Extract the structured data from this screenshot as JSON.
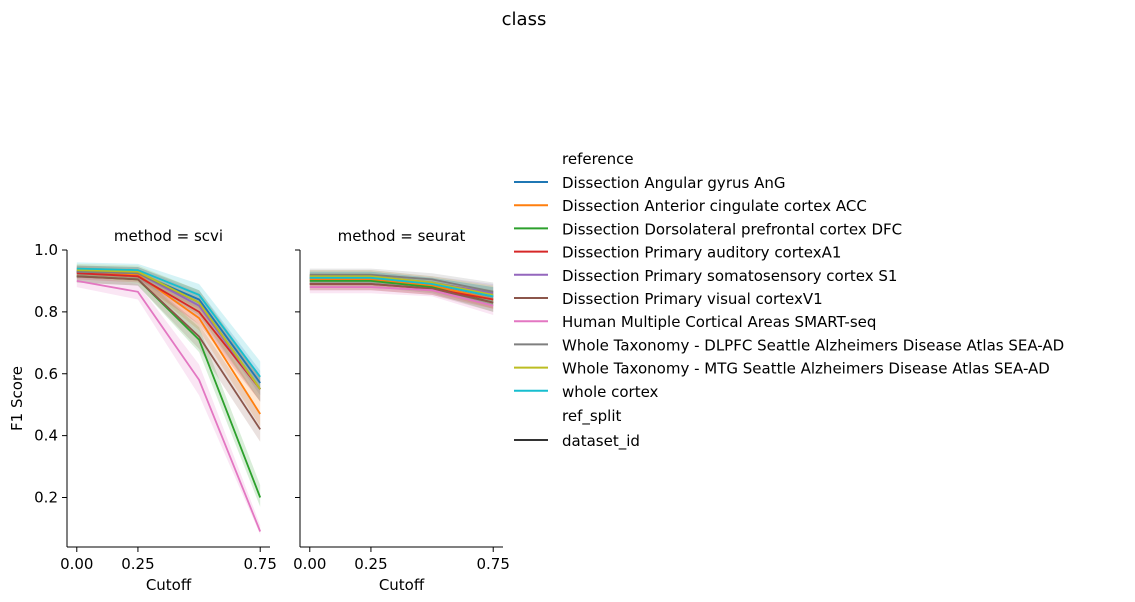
{
  "figure": {
    "suptitle": "class"
  },
  "legend": {
    "hue_title": "reference",
    "style_title": "ref_split",
    "style_entries": [
      {
        "label": "dataset_id",
        "color": "#333333"
      }
    ]
  },
  "chart_data": [
    {
      "type": "line",
      "title": "method = scvi",
      "xlabel": "Cutoff",
      "ylabel": "F1 Score",
      "xlim": [
        -0.04,
        0.79
      ],
      "ylim": [
        0.04,
        1.0
      ],
      "xticks": [
        0.0,
        0.25,
        0.75
      ],
      "xtick_labels": [
        "0.00",
        "0.25",
        "0.75"
      ],
      "yticks": [
        0.2,
        0.4,
        0.6,
        0.8,
        1.0
      ],
      "ytick_labels": [
        "0.2",
        "0.4",
        "0.6",
        "0.8",
        "1.0"
      ],
      "grid": false,
      "legend": "right",
      "x": [
        0.0,
        0.25,
        0.5,
        0.75
      ],
      "series": [
        {
          "name": "Dissection Angular gyrus AnG",
          "color": "#1f77b4",
          "values": [
            0.93,
            0.925,
            0.84,
            0.57
          ],
          "ci_low": [
            0.91,
            0.905,
            0.81,
            0.53
          ],
          "ci_high": [
            0.95,
            0.945,
            0.87,
            0.61
          ]
        },
        {
          "name": "Dissection Anterior cingulate cortex ACC",
          "color": "#ff7f0e",
          "values": [
            0.93,
            0.92,
            0.78,
            0.47
          ],
          "ci_low": [
            0.91,
            0.9,
            0.74,
            0.43
          ],
          "ci_high": [
            0.95,
            0.94,
            0.82,
            0.51
          ]
        },
        {
          "name": "Dissection Dorsolateral prefrontal cortex DFC",
          "color": "#2ca02c",
          "values": [
            0.915,
            0.905,
            0.71,
            0.2
          ],
          "ci_low": [
            0.895,
            0.885,
            0.67,
            0.17
          ],
          "ci_high": [
            0.935,
            0.925,
            0.75,
            0.24
          ]
        },
        {
          "name": "Dissection Primary auditory cortexA1",
          "color": "#d62728",
          "values": [
            0.925,
            0.915,
            0.8,
            0.55
          ],
          "ci_low": [
            0.905,
            0.895,
            0.76,
            0.51
          ],
          "ci_high": [
            0.945,
            0.935,
            0.84,
            0.59
          ]
        },
        {
          "name": "Dissection Primary somatosensory cortex S1",
          "color": "#9467bd",
          "values": [
            0.93,
            0.925,
            0.82,
            0.55
          ],
          "ci_low": [
            0.91,
            0.905,
            0.78,
            0.51
          ],
          "ci_high": [
            0.95,
            0.945,
            0.86,
            0.59
          ]
        },
        {
          "name": "Dissection Primary visual cortexV1",
          "color": "#8c564b",
          "values": [
            0.915,
            0.905,
            0.72,
            0.42
          ],
          "ci_low": [
            0.895,
            0.885,
            0.68,
            0.38
          ],
          "ci_high": [
            0.935,
            0.925,
            0.76,
            0.47
          ]
        },
        {
          "name": "Human Multiple Cortical Areas SMART-seq",
          "color": "#e377c2",
          "values": [
            0.9,
            0.865,
            0.58,
            0.09
          ],
          "ci_low": [
            0.88,
            0.84,
            0.53,
            0.08
          ],
          "ci_high": [
            0.92,
            0.89,
            0.63,
            0.11
          ]
        },
        {
          "name": "Whole Taxonomy - DLPFC Seattle Alzheimers Disease Atlas SEA-AD",
          "color": "#7f7f7f",
          "values": [
            0.93,
            0.925,
            0.83,
            0.55
          ],
          "ci_low": [
            0.91,
            0.905,
            0.79,
            0.51
          ],
          "ci_high": [
            0.95,
            0.945,
            0.87,
            0.59
          ]
        },
        {
          "name": "Whole Taxonomy - MTG Seattle Alzheimers Disease Atlas SEA-AD",
          "color": "#bcbd22",
          "values": [
            0.935,
            0.93,
            0.83,
            0.55
          ],
          "ci_low": [
            0.915,
            0.91,
            0.79,
            0.51
          ],
          "ci_high": [
            0.955,
            0.95,
            0.87,
            0.59
          ]
        },
        {
          "name": "whole cortex",
          "color": "#17becf",
          "values": [
            0.94,
            0.935,
            0.855,
            0.59
          ],
          "ci_low": [
            0.92,
            0.915,
            0.82,
            0.55
          ],
          "ci_high": [
            0.96,
            0.955,
            0.89,
            0.64
          ]
        }
      ]
    },
    {
      "type": "line",
      "title": "method = seurat",
      "xlabel": "Cutoff",
      "ylabel": "",
      "xlim": [
        -0.04,
        0.79
      ],
      "ylim": [
        0.04,
        1.0
      ],
      "xticks": [
        0.0,
        0.25,
        0.75
      ],
      "xtick_labels": [
        "0.00",
        "0.25",
        "0.75"
      ],
      "grid": false,
      "x": [
        0.0,
        0.25,
        0.5,
        0.75
      ],
      "series": [
        {
          "name": "Dissection Angular gyrus AnG",
          "color": "#1f77b4",
          "values": [
            0.91,
            0.91,
            0.89,
            0.85
          ],
          "ci_low": [
            0.89,
            0.89,
            0.87,
            0.82
          ],
          "ci_high": [
            0.93,
            0.93,
            0.91,
            0.88
          ]
        },
        {
          "name": "Dissection Anterior cingulate cortex ACC",
          "color": "#ff7f0e",
          "values": [
            0.905,
            0.905,
            0.885,
            0.84
          ],
          "ci_low": [
            0.885,
            0.885,
            0.865,
            0.81
          ],
          "ci_high": [
            0.925,
            0.925,
            0.905,
            0.87
          ]
        },
        {
          "name": "Dissection Dorsolateral prefrontal cortex DFC",
          "color": "#2ca02c",
          "values": [
            0.9,
            0.9,
            0.88,
            0.83
          ],
          "ci_low": [
            0.88,
            0.88,
            0.86,
            0.8
          ],
          "ci_high": [
            0.92,
            0.92,
            0.9,
            0.86
          ]
        },
        {
          "name": "Dissection Primary auditory cortexA1",
          "color": "#d62728",
          "values": [
            0.89,
            0.89,
            0.875,
            0.84
          ],
          "ci_low": [
            0.87,
            0.87,
            0.855,
            0.81
          ],
          "ci_high": [
            0.91,
            0.91,
            0.895,
            0.87
          ]
        },
        {
          "name": "Dissection Primary somatosensory cortex S1",
          "color": "#9467bd",
          "values": [
            0.915,
            0.915,
            0.895,
            0.86
          ],
          "ci_low": [
            0.895,
            0.895,
            0.875,
            0.83
          ],
          "ci_high": [
            0.935,
            0.935,
            0.915,
            0.89
          ]
        },
        {
          "name": "Dissection Primary visual cortexV1",
          "color": "#8c564b",
          "values": [
            0.89,
            0.89,
            0.875,
            0.83
          ],
          "ci_low": [
            0.87,
            0.87,
            0.855,
            0.8
          ],
          "ci_high": [
            0.91,
            0.91,
            0.895,
            0.86
          ]
        },
        {
          "name": "Human Multiple Cortical Areas SMART-seq",
          "color": "#e377c2",
          "values": [
            0.88,
            0.88,
            0.87,
            0.82
          ],
          "ci_low": [
            0.86,
            0.86,
            0.85,
            0.79
          ],
          "ci_high": [
            0.9,
            0.9,
            0.89,
            0.85
          ]
        },
        {
          "name": "Whole Taxonomy - DLPFC Seattle Alzheimers Disease Atlas SEA-AD",
          "color": "#7f7f7f",
          "values": [
            0.92,
            0.92,
            0.905,
            0.865
          ],
          "ci_low": [
            0.9,
            0.9,
            0.885,
            0.835
          ],
          "ci_high": [
            0.94,
            0.94,
            0.925,
            0.895
          ]
        },
        {
          "name": "Whole Taxonomy - MTG Seattle Alzheimers Disease Atlas SEA-AD",
          "color": "#bcbd22",
          "values": [
            0.915,
            0.915,
            0.895,
            0.855
          ],
          "ci_low": [
            0.895,
            0.895,
            0.875,
            0.825
          ],
          "ci_high": [
            0.935,
            0.935,
            0.915,
            0.885
          ]
        },
        {
          "name": "whole cortex",
          "color": "#17becf",
          "values": [
            0.91,
            0.91,
            0.89,
            0.85
          ],
          "ci_low": [
            0.89,
            0.89,
            0.87,
            0.82
          ],
          "ci_high": [
            0.93,
            0.93,
            0.91,
            0.88
          ]
        }
      ]
    }
  ]
}
